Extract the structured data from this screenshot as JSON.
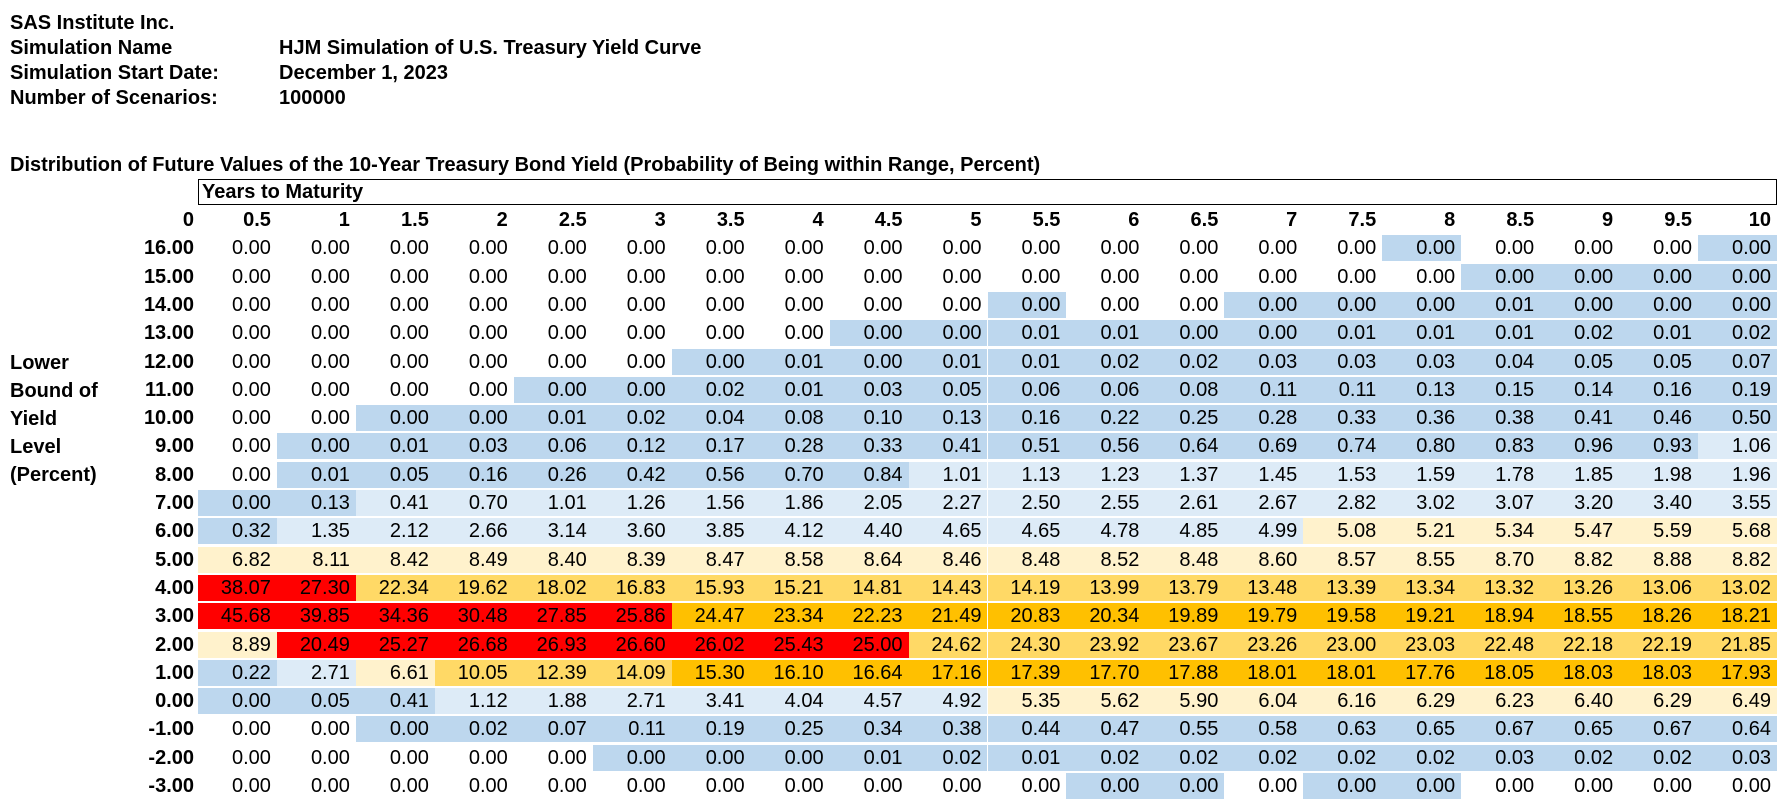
{
  "header": {
    "company": "SAS Institute Inc.",
    "simulation_name_label": "Simulation Name",
    "simulation_name": "HJM Simulation of U.S. Treasury Yield Curve",
    "start_date_label": "Simulation Start Date:",
    "start_date": "December 1, 2023",
    "scenarios_label": "Number of Scenarios:",
    "scenarios": "100000"
  },
  "table": {
    "title": "Distribution of Future Values of the 10-Year Treasury Bond Yield (Probability of Being within Range, Percent)",
    "column_group_label": "Years to Maturity",
    "corner_label": "0",
    "row_axis_label": [
      "Lower",
      "Bound of",
      "Yield",
      "Level",
      "(Percent)"
    ],
    "columns": [
      "0.5",
      "1",
      "1.5",
      "2",
      "2.5",
      "3",
      "3.5",
      "4",
      "4.5",
      "5",
      "5.5",
      "6",
      "6.5",
      "7",
      "7.5",
      "8",
      "8.5",
      "9",
      "9.5",
      "10"
    ],
    "row_labels": [
      "16.00",
      "15.00",
      "14.00",
      "13.00",
      "12.00",
      "11.00",
      "10.00",
      "9.00",
      "8.00",
      "7.00",
      "6.00",
      "5.00",
      "4.00",
      "3.00",
      "2.00",
      "1.00",
      "0.00",
      "-1.00",
      "-2.00",
      "-3.00"
    ],
    "values": [
      [
        "0.00",
        "0.00",
        "0.00",
        "0.00",
        "0.00",
        "0.00",
        "0.00",
        "0.00",
        "0.00",
        "0.00",
        "0.00",
        "0.00",
        "0.00",
        "0.00",
        "0.00",
        "0.00",
        "0.00",
        "0.00",
        "0.00",
        "0.00"
      ],
      [
        "0.00",
        "0.00",
        "0.00",
        "0.00",
        "0.00",
        "0.00",
        "0.00",
        "0.00",
        "0.00",
        "0.00",
        "0.00",
        "0.00",
        "0.00",
        "0.00",
        "0.00",
        "0.00",
        "0.00",
        "0.00",
        "0.00",
        "0.00"
      ],
      [
        "0.00",
        "0.00",
        "0.00",
        "0.00",
        "0.00",
        "0.00",
        "0.00",
        "0.00",
        "0.00",
        "0.00",
        "0.00",
        "0.00",
        "0.00",
        "0.00",
        "0.00",
        "0.00",
        "0.01",
        "0.00",
        "0.00",
        "0.00"
      ],
      [
        "0.00",
        "0.00",
        "0.00",
        "0.00",
        "0.00",
        "0.00",
        "0.00",
        "0.00",
        "0.00",
        "0.00",
        "0.01",
        "0.01",
        "0.00",
        "0.00",
        "0.01",
        "0.01",
        "0.01",
        "0.02",
        "0.01",
        "0.02"
      ],
      [
        "0.00",
        "0.00",
        "0.00",
        "0.00",
        "0.00",
        "0.00",
        "0.00",
        "0.01",
        "0.00",
        "0.01",
        "0.01",
        "0.02",
        "0.02",
        "0.03",
        "0.03",
        "0.03",
        "0.04",
        "0.05",
        "0.05",
        "0.07"
      ],
      [
        "0.00",
        "0.00",
        "0.00",
        "0.00",
        "0.00",
        "0.00",
        "0.02",
        "0.01",
        "0.03",
        "0.05",
        "0.06",
        "0.06",
        "0.08",
        "0.11",
        "0.11",
        "0.13",
        "0.15",
        "0.14",
        "0.16",
        "0.19"
      ],
      [
        "0.00",
        "0.00",
        "0.00",
        "0.00",
        "0.01",
        "0.02",
        "0.04",
        "0.08",
        "0.10",
        "0.13",
        "0.16",
        "0.22",
        "0.25",
        "0.28",
        "0.33",
        "0.36",
        "0.38",
        "0.41",
        "0.46",
        "0.50"
      ],
      [
        "0.00",
        "0.00",
        "0.01",
        "0.03",
        "0.06",
        "0.12",
        "0.17",
        "0.28",
        "0.33",
        "0.41",
        "0.51",
        "0.56",
        "0.64",
        "0.69",
        "0.74",
        "0.80",
        "0.83",
        "0.96",
        "0.93",
        "1.06"
      ],
      [
        "0.00",
        "0.01",
        "0.05",
        "0.16",
        "0.26",
        "0.42",
        "0.56",
        "0.70",
        "0.84",
        "1.01",
        "1.13",
        "1.23",
        "1.37",
        "1.45",
        "1.53",
        "1.59",
        "1.78",
        "1.85",
        "1.98",
        "1.96"
      ],
      [
        "0.00",
        "0.13",
        "0.41",
        "0.70",
        "1.01",
        "1.26",
        "1.56",
        "1.86",
        "2.05",
        "2.27",
        "2.50",
        "2.55",
        "2.61",
        "2.67",
        "2.82",
        "3.02",
        "3.07",
        "3.20",
        "3.40",
        "3.55"
      ],
      [
        "0.32",
        "1.35",
        "2.12",
        "2.66",
        "3.14",
        "3.60",
        "3.85",
        "4.12",
        "4.40",
        "4.65",
        "4.65",
        "4.78",
        "4.85",
        "4.99",
        "5.08",
        "5.21",
        "5.34",
        "5.47",
        "5.59",
        "5.68"
      ],
      [
        "6.82",
        "8.11",
        "8.42",
        "8.49",
        "8.40",
        "8.39",
        "8.47",
        "8.58",
        "8.64",
        "8.46",
        "8.48",
        "8.52",
        "8.48",
        "8.60",
        "8.57",
        "8.55",
        "8.70",
        "8.82",
        "8.88",
        "8.82"
      ],
      [
        "38.07",
        "27.30",
        "22.34",
        "19.62",
        "18.02",
        "16.83",
        "15.93",
        "15.21",
        "14.81",
        "14.43",
        "14.19",
        "13.99",
        "13.79",
        "13.48",
        "13.39",
        "13.34",
        "13.32",
        "13.26",
        "13.06",
        "13.02"
      ],
      [
        "45.68",
        "39.85",
        "34.36",
        "30.48",
        "27.85",
        "25.86",
        "24.47",
        "23.34",
        "22.23",
        "21.49",
        "20.83",
        "20.34",
        "19.89",
        "19.79",
        "19.58",
        "19.21",
        "18.94",
        "18.55",
        "18.26",
        "18.21"
      ],
      [
        "8.89",
        "20.49",
        "25.27",
        "26.68",
        "26.93",
        "26.60",
        "26.02",
        "25.43",
        "25.00",
        "24.62",
        "24.30",
        "23.92",
        "23.67",
        "23.26",
        "23.00",
        "23.03",
        "22.48",
        "22.18",
        "22.19",
        "21.85"
      ],
      [
        "0.22",
        "2.71",
        "6.61",
        "10.05",
        "12.39",
        "14.09",
        "15.30",
        "16.10",
        "16.64",
        "17.16",
        "17.39",
        "17.70",
        "17.88",
        "18.01",
        "18.01",
        "17.76",
        "18.05",
        "18.03",
        "18.03",
        "17.93"
      ],
      [
        "0.00",
        "0.05",
        "0.41",
        "1.12",
        "1.88",
        "2.71",
        "3.41",
        "4.04",
        "4.57",
        "4.92",
        "5.35",
        "5.62",
        "5.90",
        "6.04",
        "6.16",
        "6.29",
        "6.23",
        "6.40",
        "6.29",
        "6.49"
      ],
      [
        "0.00",
        "0.00",
        "0.00",
        "0.02",
        "0.07",
        "0.11",
        "0.19",
        "0.25",
        "0.34",
        "0.38",
        "0.44",
        "0.47",
        "0.55",
        "0.58",
        "0.63",
        "0.65",
        "0.67",
        "0.65",
        "0.67",
        "0.64"
      ],
      [
        "0.00",
        "0.00",
        "0.00",
        "0.00",
        "0.00",
        "0.00",
        "0.00",
        "0.00",
        "0.01",
        "0.02",
        "0.01",
        "0.02",
        "0.02",
        "0.02",
        "0.02",
        "0.02",
        "0.03",
        "0.02",
        "0.02",
        "0.03"
      ],
      [
        "0.00",
        "0.00",
        "0.00",
        "0.00",
        "0.00",
        "0.00",
        "0.00",
        "0.00",
        "0.00",
        "0.00",
        "0.00",
        "0.00",
        "0.00",
        "0.00",
        "0.00",
        "0.00",
        "0.00",
        "0.00",
        "0.00",
        "0.00"
      ]
    ],
    "color_codes": [
      "WWWWWWWWWWWWWWWBWWWB",
      "WWWWWWWWWWWWWWWWBBBB",
      "WWWWWWWWWWBWWBBBBBBB",
      "WWWWWWWWBBBBBBBBBBBB",
      "WWWWWWBBBBBBBBBBBBBB",
      "WWWWBBBBBBBBBBBBBBBB",
      "WWBBBBBBBBBBBBBBBBBB",
      "WBBBBBBBBBBBBBBBBBBP",
      "WBBBBBBBBPPPPPPPPPPP",
      "BBPPPPPPPPPPPPPPPPPP",
      "BPPPPPPPPPPPPPYYYYYY",
      "YYYYYYYYYYYYYYYYYYYY",
      "RROOOOOOOOOOOOOOOOOO",
      "RRRRRRGGGGGGGGGGGGGG",
      "YRRRRRRRROOOOOOOOOOO",
      "BPYOOOGGGGGGGGGGGGGG",
      "BBBPPPPPPPYYYYYYYYYY",
      "WWBBBBBBBBBBBBBBBBBB",
      "WWWWWBBBBBBBBBBBBBBB",
      "WWWWWWWWWWWBBWBBWWWW"
    ],
    "palette": {
      "W": "#ffffff",
      "B": "#bdd7ee",
      "P": "#ddebf7",
      "Y": "#fff2cc",
      "O": "#ffd966",
      "G": "#ffc000",
      "R": "#ff0000"
    }
  }
}
